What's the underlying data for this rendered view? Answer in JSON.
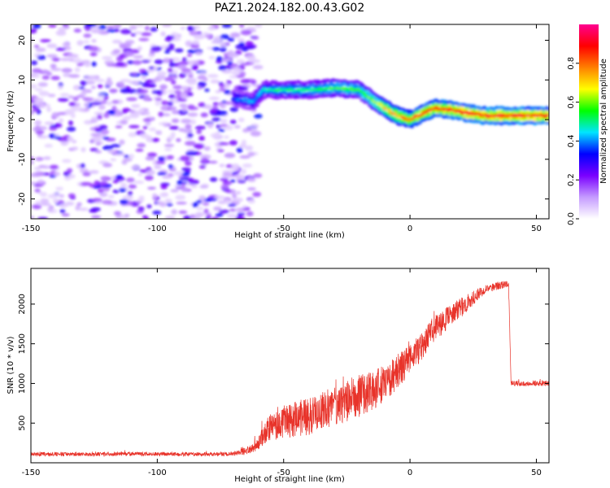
{
  "figure": {
    "title": "PAZ1.2024.182.00.43.G02"
  },
  "chart_data": [
    {
      "type": "heatmap",
      "title": "PAZ1.2024.182.00.43.G02",
      "xlabel": "Height of straight line (km)",
      "ylabel": "Frequency (Hz)",
      "xlim": [
        -150,
        55
      ],
      "ylim": [
        -25,
        24
      ],
      "xticks": [
        -150,
        -100,
        -50,
        0,
        50
      ],
      "yticks": [
        20,
        10,
        0,
        -10,
        -20
      ],
      "colorbar": {
        "label": "Normalized spectral amplitude",
        "range": [
          0,
          1
        ],
        "ticks": [
          0.0,
          0.2,
          0.4,
          0.6,
          0.8
        ],
        "colormap": [
          "#ffffff",
          "#c59bff",
          "#7a00ff",
          "#0000ff",
          "#00e5ff",
          "#00ff00",
          "#ffff00",
          "#ff8000",
          "#ff0000",
          "#ff0090"
        ]
      },
      "noise_region": {
        "x_range": [
          -150,
          -60
        ],
        "amplitude_range": [
          0.05,
          0.35
        ]
      },
      "signal_ridge": {
        "x": [
          -70,
          -62,
          -58,
          -52,
          -40,
          -30,
          -20,
          -15,
          -10,
          -5,
          0,
          5,
          10,
          20,
          30,
          40,
          55
        ],
        "frequency": [
          5.5,
          4.5,
          7.5,
          7.5,
          7.5,
          8,
          7.5,
          5,
          3,
          1,
          0,
          1.5,
          3,
          2,
          1,
          1,
          1
        ],
        "amplitude": [
          0.4,
          0.45,
          0.5,
          0.55,
          0.55,
          0.6,
          0.6,
          0.65,
          0.75,
          0.8,
          0.85,
          0.9,
          0.9,
          0.95,
          0.95,
          0.95,
          0.95
        ]
      }
    },
    {
      "type": "line",
      "xlabel": "Height of straight line (km)",
      "ylabel": "SNR (10 * v/v)",
      "xlim": [
        -150,
        55
      ],
      "ylim": [
        0,
        2450
      ],
      "xticks": [
        -150,
        -100,
        -50,
        0,
        50
      ],
      "yticks": [
        500,
        1000,
        1500,
        2000
      ],
      "color": "#e8332a",
      "envelope": {
        "x": [
          -150,
          -70,
          -62,
          -55,
          -50,
          -40,
          -30,
          -20,
          -10,
          0,
          5,
          10,
          20,
          30,
          38,
          39,
          40,
          55
        ],
        "mean": [
          110,
          110,
          180,
          450,
          520,
          580,
          720,
          830,
          1000,
          1300,
          1500,
          1700,
          1950,
          2200,
          2250,
          2250,
          1000,
          1000
        ],
        "spread": [
          45,
          45,
          110,
          320,
          400,
          420,
          450,
          480,
          450,
          350,
          350,
          300,
          230,
          100,
          80,
          80,
          60,
          60
        ]
      }
    }
  ]
}
